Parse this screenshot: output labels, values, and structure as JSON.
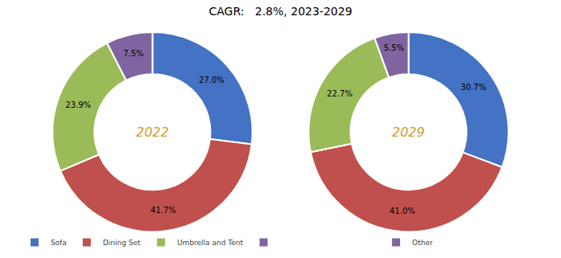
{
  "chart_data": [
    {
      "type": "pie",
      "title": "CAGR:   2.8%, 2023-2029",
      "categories": [
        "Sofa",
        "Dining Set",
        "Umbrella and Tent",
        null
      ],
      "values": [
        27.0,
        41.7,
        23.9,
        7.5
      ],
      "value_labels": [
        "27.0%",
        "41.7%",
        "23.9%",
        "7.5%"
      ],
      "colors": [
        "#4472C4",
        "#C0504D",
        "#9BBB59",
        "#8064A2"
      ],
      "annotations": [
        {
          "text": "2022",
          "color": "#C8A030"
        }
      ],
      "data_labels": true,
      "legend": "bottom"
    },
    {
      "type": "pie",
      "categories": [
        "Sofa",
        "Dining Set",
        "Umbrella and Tent",
        "Other"
      ],
      "values": [
        30.7,
        41.0,
        22.7,
        5.5
      ],
      "value_labels": [
        "30.7%",
        "41.0%",
        "22.7%",
        "5.5%"
      ],
      "colors": [
        "#4472C4",
        "#C0504D",
        "#9BBB59",
        "#8064A2"
      ],
      "annotations": [
        {
          "text": "2029",
          "color": "#C8A030"
        }
      ],
      "data_labels": true,
      "legend": "bottom"
    }
  ]
}
